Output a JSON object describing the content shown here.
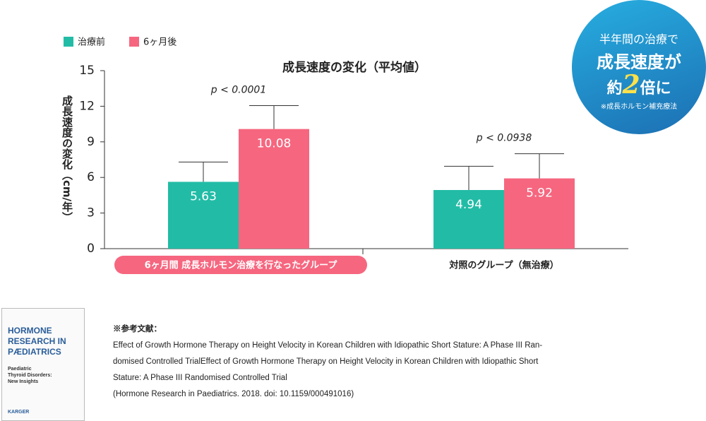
{
  "chart_data": {
    "type": "bar",
    "title": "成長速度の変化（平均値）",
    "y_label": "成長速度の変化（cm/年）",
    "categories": [
      "6ヶ月間 成長ホルモン治療を行なったグループ",
      "対照のグループ（無治療）"
    ],
    "series": [
      {
        "name": "治療前",
        "color": "#22bca6",
        "values": [
          5.63,
          4.94
        ],
        "errors": [
          1.67,
          2.0
        ]
      },
      {
        "name": "6ヶ月後",
        "color": "#f6667f",
        "values": [
          10.08,
          5.92
        ],
        "errors": [
          1.97,
          2.08
        ]
      }
    ],
    "annotations": [
      "p < 0.0001",
      "p < 0.0938"
    ],
    "ylim": [
      0,
      15
    ],
    "yticks": [
      0,
      3,
      6,
      9,
      12,
      15
    ],
    "grid": false,
    "legend": "top-left"
  },
  "badge": {
    "lines": [
      "半年間の治療で",
      "成長速度が",
      "約",
      "2",
      "倍に"
    ],
    "note": "※成長ホルモン補充療法"
  },
  "reference": {
    "heading": "※参考文献：",
    "lines": [
      "Effect of Growth Hormone Therapy on Height Velocity in Korean Children with Idiopathic Short Stature: A Phase III Ran-",
      "domised Controlled TrialEffect of Growth Hormone Therapy on Height Velocity in Korean Children with Idiopathic Short",
      "Stature: A Phase III Randomised Controlled Trial",
      "(Hormone Research in Paediatrics. 2018. doi: 10.1159/000491016)"
    ]
  },
  "cover": {
    "title_lines": [
      "HORMONE",
      "RESEARCH IN",
      "PÆDIATRICS"
    ],
    "topic_lines": [
      "Paediatric",
      "Thyroid Disorders:",
      "New Insights"
    ],
    "publisher": "KARGER"
  }
}
